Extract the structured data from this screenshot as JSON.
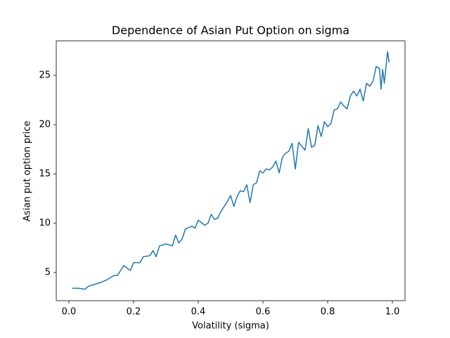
{
  "chart_data": {
    "type": "line",
    "title": "Dependence of Asian Put Option on sigma",
    "x_label": "Volatility (sigma)",
    "y_label": "Asian put option price",
    "x": [
      0.01,
      0.03,
      0.05,
      0.06,
      0.08,
      0.1,
      0.12,
      0.14,
      0.15,
      0.17,
      0.19,
      0.2,
      0.22,
      0.23,
      0.25,
      0.26,
      0.27,
      0.28,
      0.3,
      0.32,
      0.33,
      0.34,
      0.35,
      0.36,
      0.38,
      0.39,
      0.4,
      0.42,
      0.43,
      0.44,
      0.45,
      0.46,
      0.47,
      0.48,
      0.49,
      0.5,
      0.51,
      0.52,
      0.53,
      0.54,
      0.55,
      0.56,
      0.57,
      0.58,
      0.59,
      0.6,
      0.61,
      0.62,
      0.63,
      0.64,
      0.65,
      0.66,
      0.67,
      0.68,
      0.69,
      0.7,
      0.71,
      0.72,
      0.73,
      0.74,
      0.75,
      0.76,
      0.77,
      0.78,
      0.79,
      0.8,
      0.81,
      0.82,
      0.83,
      0.84,
      0.85,
      0.86,
      0.87,
      0.88,
      0.89,
      0.9,
      0.91,
      0.92,
      0.93,
      0.94,
      0.95,
      0.96,
      0.965,
      0.97,
      0.975,
      0.985,
      0.99
    ],
    "series": [
      {
        "name": "Asian put option price",
        "color": "#1f77b4",
        "values": [
          3.4,
          3.4,
          3.3,
          3.6,
          3.8,
          4.0,
          4.3,
          4.7,
          4.7,
          5.7,
          5.2,
          6.0,
          6.0,
          6.6,
          6.7,
          7.2,
          6.6,
          7.7,
          7.9,
          7.7,
          8.8,
          8.0,
          8.4,
          9.4,
          9.7,
          9.5,
          10.3,
          9.8,
          10.0,
          10.9,
          10.4,
          10.5,
          11.2,
          11.7,
          12.2,
          12.8,
          11.7,
          12.7,
          13.3,
          13.2,
          13.9,
          12.1,
          13.9,
          14.1,
          15.3,
          15.1,
          15.5,
          15.4,
          15.7,
          16.3,
          15.1,
          16.7,
          17.1,
          17.3,
          18.1,
          15.5,
          18.2,
          17.8,
          17.4,
          19.6,
          17.7,
          17.9,
          19.9,
          18.8,
          20.3,
          19.8,
          20.1,
          21.5,
          21.6,
          22.3,
          21.9,
          21.6,
          22.9,
          23.4,
          22.9,
          23.6,
          22.4,
          24.2,
          23.9,
          24.4,
          25.9,
          25.7,
          23.6,
          25.6,
          24.2,
          27.4,
          26.3
        ]
      }
    ],
    "xlim": [
      -0.039,
      1.039
    ],
    "ylim": [
      2.14,
      28.5
    ],
    "xticks": [
      {
        "value": 0.0,
        "label": "0.0"
      },
      0.2,
      0.4,
      0.6,
      0.8,
      {
        "value": 1.0,
        "label": "1.0"
      }
    ],
    "yticks": [
      5,
      10,
      15,
      20,
      25
    ],
    "grid": false
  }
}
